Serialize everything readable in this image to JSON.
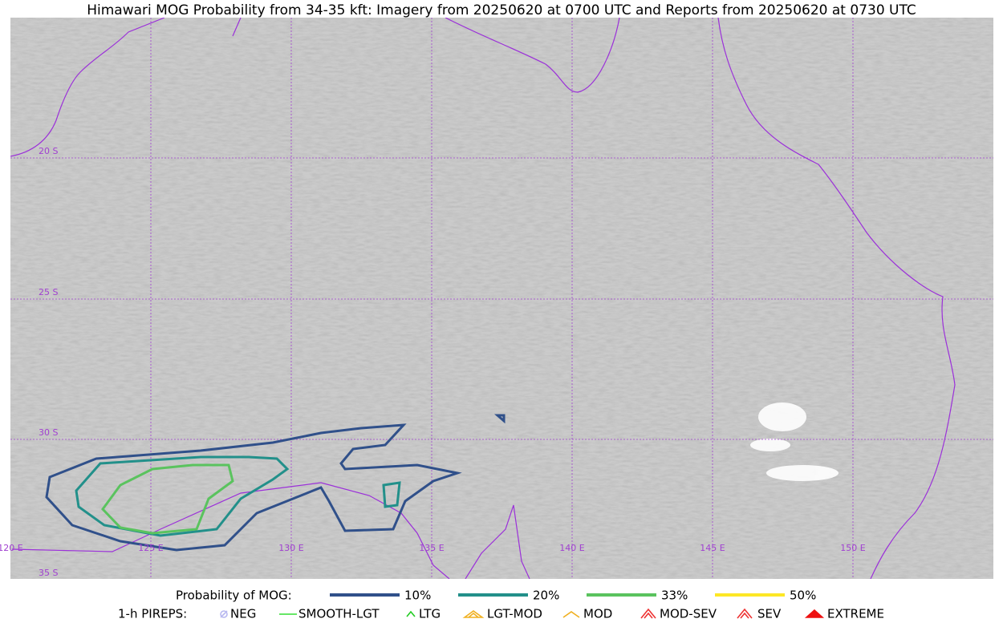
{
  "title": "Himawari MOG Probability from 34-35 kft: Imagery from 20250620 at 0700 UTC and Reports from 20250620 at 0730 UTC",
  "latitude_labels": [
    "20 S",
    "25 S",
    "30 S",
    "35 S"
  ],
  "longitude_labels": [
    "120 E",
    "125 E",
    "130 E",
    "135 E",
    "140 E",
    "145 E",
    "150 E"
  ],
  "probability_legend": {
    "label": "Probability of MOG:",
    "items": [
      {
        "label": "10%",
        "color": "#30508a"
      },
      {
        "label": "20%",
        "color": "#22908a"
      },
      {
        "label": "33%",
        "color": "#5ac35e"
      },
      {
        "label": "50%",
        "color": "#fde725"
      }
    ]
  },
  "pirep_legend": {
    "label": "1-h PIREPS:",
    "items": [
      {
        "label": "NEG",
        "color": "#b8b8f0"
      },
      {
        "label": "SMOOTH-LGT",
        "color": "#33dd33"
      },
      {
        "label": "LTG",
        "color": "#22cc22"
      },
      {
        "label": "LGT-MOD",
        "color": "#f0b020"
      },
      {
        "label": "MOD",
        "color": "#f0b020"
      },
      {
        "label": "MOD-SEV",
        "color": "#ee3333"
      },
      {
        "label": "SEV",
        "color": "#ee3333"
      },
      {
        "label": "EXTREME",
        "color": "#ee1111"
      }
    ]
  }
}
